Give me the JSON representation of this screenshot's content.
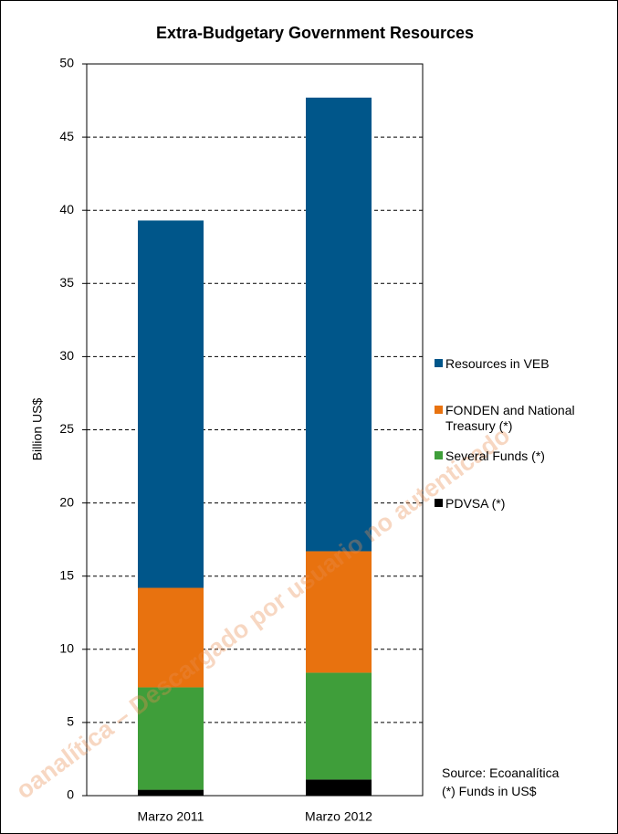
{
  "chart_data": {
    "type": "stacked_bar",
    "title": "Extra-Budgetary Government Resources",
    "y_label": "Billion US$",
    "categories": [
      "Marzo 2011",
      "Marzo 2012"
    ],
    "series": [
      {
        "name": "PDVSA (*)",
        "color": "#000000",
        "values": [
          0.4,
          1.1
        ]
      },
      {
        "name": "Several Funds (*)",
        "color": "#3f9e3a",
        "values": [
          7.0,
          7.3
        ]
      },
      {
        "name": "FONDEN and National Treasury (*)",
        "color": "#e8720f",
        "values": [
          6.8,
          8.3
        ]
      },
      {
        "name": "Resources in VEB",
        "color": "#00568a",
        "values": [
          25.1,
          31.0
        ]
      }
    ],
    "ylim": [
      0,
      50
    ],
    "yticks": [
      0,
      5,
      10,
      15,
      20,
      25,
      30,
      35,
      40,
      45,
      50
    ],
    "grid": true,
    "annotations": [
      "Source: Ecoanalítica",
      "(*) Funds in US$"
    ],
    "watermark": "oanalítica – Descargado por usuario no autenticado"
  }
}
